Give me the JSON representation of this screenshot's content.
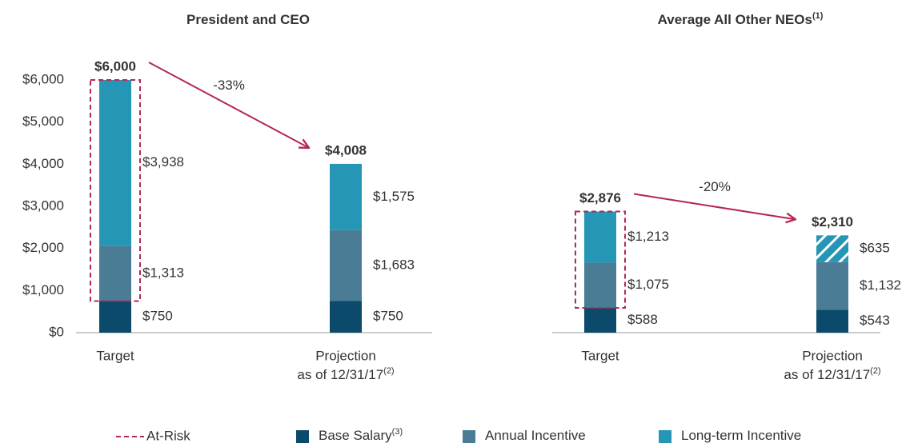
{
  "legend": {
    "at_risk": {
      "name": "At-Risk",
      "color": "#b5284f"
    },
    "items": [
      {
        "name": "Base Salary",
        "note": "(3)",
        "color": "#0b4a6b",
        "label_color": "#0b3f5e"
      },
      {
        "name": "Annual Incentive",
        "color": "#4a7c96",
        "label_color": "#4a7c96"
      },
      {
        "name": "Long-term Incentive",
        "color": "#2596b5",
        "label_color": "#2596b5"
      }
    ]
  },
  "chart_data": [
    {
      "type": "bar",
      "stacked": true,
      "title": "President and CEO",
      "categories": [
        "Target",
        "Projection"
      ],
      "category_subtitles": [
        null,
        "as of 12/31/17"
      ],
      "category_notes": [
        null,
        "(2)"
      ],
      "series": [
        {
          "values": [
            750,
            750
          ],
          "value_labels": [
            "$750",
            "$750"
          ]
        },
        {
          "values": [
            1313,
            1683
          ],
          "value_labels": [
            "$1,313",
            "$1,683"
          ]
        },
        {
          "values": [
            3938,
            1575
          ],
          "value_labels": [
            "$3,938",
            "$1,575"
          ]
        }
      ],
      "totals": [
        6000,
        4008
      ],
      "total_labels": [
        "$6,000",
        "$4,008"
      ],
      "change_label": "-33%",
      "ylim": [
        0,
        6000
      ],
      "yticks": [
        {
          "value": 0,
          "label": "$0"
        },
        {
          "value": 1000,
          "label": "$1,000"
        },
        {
          "value": 2000,
          "label": "$2,000"
        },
        {
          "value": 3000,
          "label": "$3,000"
        },
        {
          "value": 4000,
          "label": "$4,000"
        },
        {
          "value": 5000,
          "label": "$5,000"
        },
        {
          "value": 6000,
          "label": "$6,000"
        }
      ]
    },
    {
      "type": "bar",
      "stacked": true,
      "title": "Average All Other NEOs",
      "title_note": "(1)",
      "categories": [
        "Target",
        "Projection"
      ],
      "category_subtitles": [
        null,
        "as of 12/31/17"
      ],
      "category_notes": [
        null,
        "(2)"
      ],
      "series": [
        {
          "values": [
            588,
            543
          ],
          "value_labels": [
            "$588",
            "$543"
          ]
        },
        {
          "values": [
            1075,
            1132
          ],
          "value_labels": [
            "$1,075",
            "$1,132"
          ]
        },
        {
          "values": [
            1213,
            635
          ],
          "value_labels": [
            "$1,213",
            "$635"
          ],
          "hatched": [
            false,
            true
          ]
        }
      ],
      "totals": [
        2876,
        2310
      ],
      "total_labels": [
        "$2,876",
        "$2,310"
      ],
      "change_label": "-20%",
      "ylim": [
        0,
        6000
      ]
    }
  ]
}
